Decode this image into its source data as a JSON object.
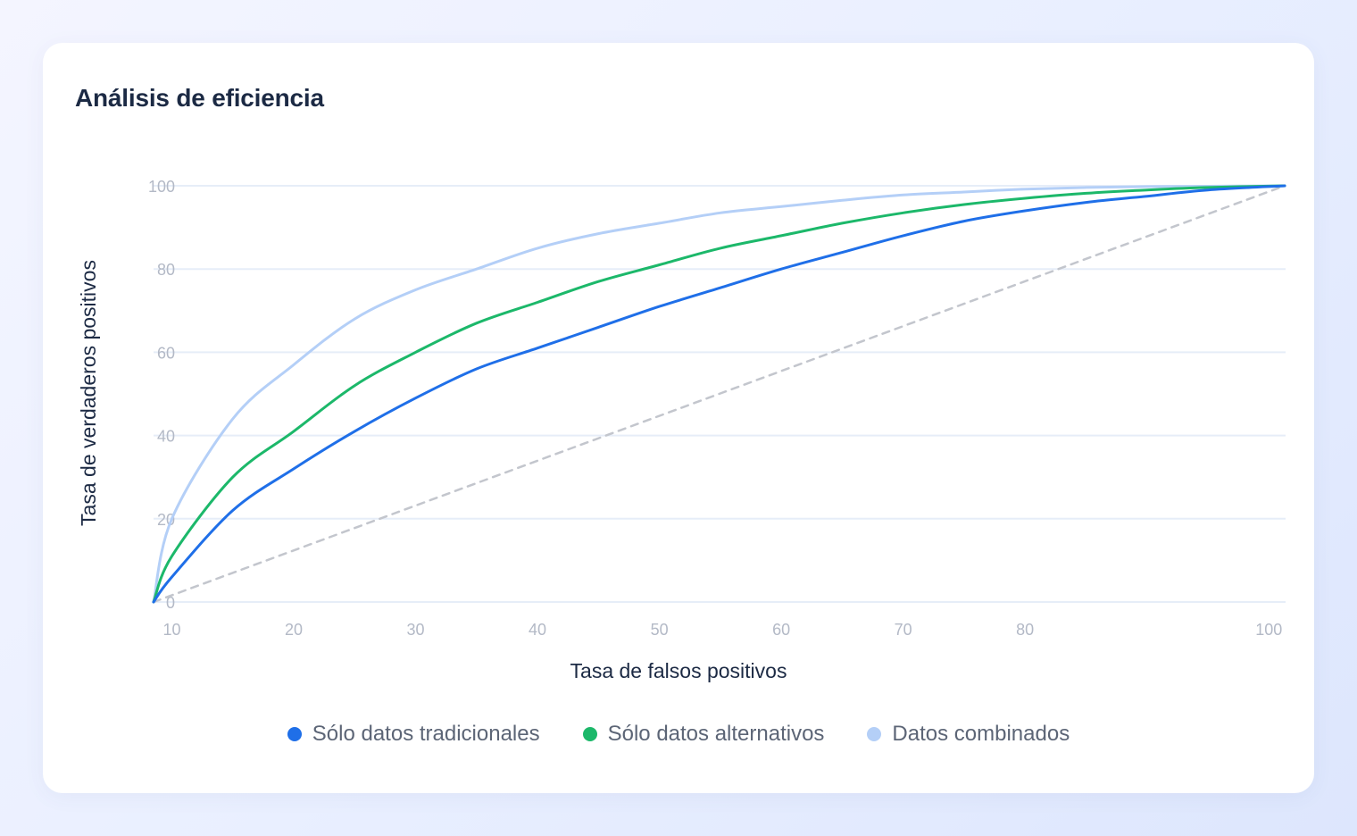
{
  "title": "Análisis de eficiencia",
  "colors": {
    "traditional": "#1f6fe8",
    "alternative": "#1cb86a",
    "combined": "#b4cff7",
    "baseline": "#c3c6cd",
    "grid": "#e6edf8"
  },
  "chart_data": {
    "type": "line",
    "title": "Análisis de eficiencia",
    "xlabel": "Tasa de falsos positivos",
    "ylabel": "Tasa de verdaderos positivos",
    "xlim": [
      8.5,
      101.3
    ],
    "ylim": [
      0,
      100
    ],
    "xticks": [
      10,
      20,
      30,
      40,
      50,
      60,
      70,
      80,
      100
    ],
    "yticks": [
      0,
      20,
      40,
      60,
      80,
      100
    ],
    "grid": true,
    "legend_position": "bottom",
    "series": [
      {
        "name": "Sólo datos tradicionales",
        "color": "#1f6fe8",
        "style": "solid",
        "x": [
          8.5,
          10,
          15,
          20,
          25,
          30,
          35,
          40,
          45,
          50,
          55,
          60,
          65,
          70,
          75,
          80,
          85,
          90,
          95,
          101.3
        ],
        "y": [
          0,
          6,
          22,
          32,
          41,
          49,
          56,
          61,
          66,
          71,
          75.5,
          80,
          84,
          88,
          91.5,
          94,
          96,
          97.5,
          99,
          100
        ]
      },
      {
        "name": "Sólo datos alternativos",
        "color": "#1cb86a",
        "style": "solid",
        "x": [
          8.5,
          10,
          15,
          20,
          25,
          30,
          35,
          40,
          45,
          50,
          55,
          60,
          65,
          70,
          75,
          80,
          85,
          90,
          95,
          101.3
        ],
        "y": [
          0,
          11,
          30,
          41,
          52,
          60,
          67,
          72,
          77,
          81,
          85,
          88,
          91,
          93.5,
          95.5,
          97,
          98.2,
          99,
          99.6,
          100
        ]
      },
      {
        "name": "Datos combinados",
        "color": "#b4cff7",
        "style": "solid",
        "x": [
          8.5,
          10,
          15,
          20,
          25,
          30,
          35,
          40,
          45,
          50,
          55,
          60,
          65,
          70,
          75,
          80,
          85,
          90,
          95,
          101.3
        ],
        "y": [
          0,
          20,
          44,
          57,
          68,
          75,
          80,
          85,
          88.5,
          91,
          93.5,
          95,
          96.5,
          97.8,
          98.5,
          99.2,
          99.6,
          99.8,
          99.9,
          100
        ]
      },
      {
        "name": "",
        "color": "#c3c6cd",
        "style": "dashed",
        "x": [
          8.5,
          101.3
        ],
        "y": [
          0,
          100
        ]
      }
    ]
  }
}
